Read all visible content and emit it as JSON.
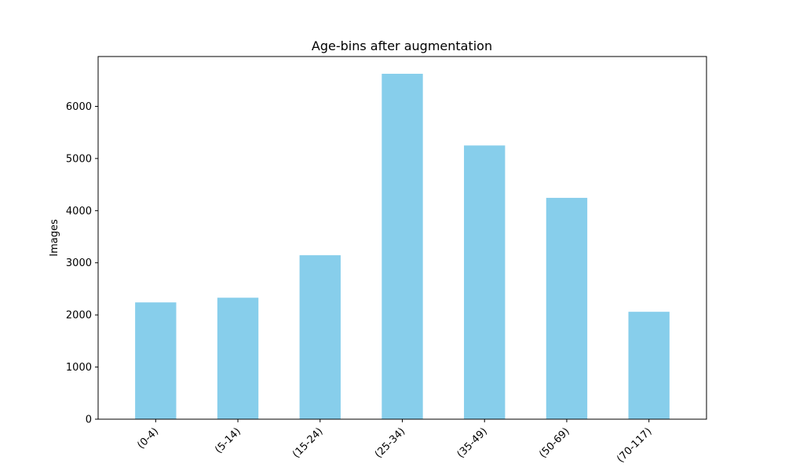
{
  "chart_data": {
    "type": "bar",
    "title": "Age-bins after augmentation",
    "xlabel": "",
    "ylabel": "Images",
    "categories": [
      "(0-4)",
      "(5-14)",
      "(15-24)",
      "(25-34)",
      "(35-49)",
      "(50-69)",
      "(70-117)"
    ],
    "values": [
      2240,
      2330,
      3145,
      6625,
      5250,
      4245,
      2060
    ],
    "ylim": [
      0,
      6956
    ],
    "yticks": [
      0,
      1000,
      2000,
      3000,
      4000,
      5000,
      6000
    ],
    "bar_color": "#87ceeb",
    "grid": false,
    "legend": "none"
  }
}
